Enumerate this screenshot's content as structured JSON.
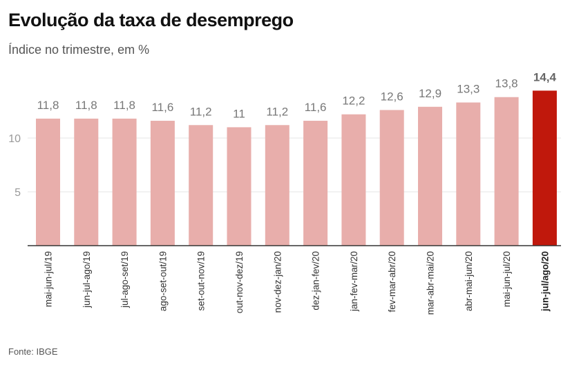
{
  "title": "Evolução da taxa de desemprego",
  "subtitle": "Índice no trimestre, em %",
  "source": "Fonte: IBGE",
  "chart_data": {
    "type": "bar",
    "categories": [
      "mai-jun-jul/19",
      "jun-jul-ago/19",
      "jul-ago-set/19",
      "ago-set-out/19",
      "set-out-nov/19",
      "out-nov-dez/19",
      "nov-dez-jan/20",
      "dez-jan-fev/20",
      "jan-fev-mar/20",
      "fev-mar-abr/20",
      "mar-abr-mai/20",
      "abr-mai-jun/20",
      "mai-jun-jul/20",
      "jun-jul/ago/20"
    ],
    "values": [
      11.8,
      11.8,
      11.8,
      11.6,
      11.2,
      11,
      11.2,
      11.6,
      12.2,
      12.6,
      12.9,
      13.3,
      13.8,
      14.4
    ],
    "value_labels": [
      "11,8",
      "11,8",
      "11,8",
      "11,6",
      "11,2",
      "11",
      "11,2",
      "11,6",
      "12,2",
      "12,6",
      "12,9",
      "13,3",
      "13,8",
      "14,4"
    ],
    "yticks": [
      5,
      10
    ],
    "ylim": [
      0,
      15
    ],
    "grid": true,
    "highlight_index": 13,
    "colors": {
      "bar": "#e8aeab",
      "highlight": "#c0180c",
      "grid": "#e6e6e6",
      "axis": "#333333"
    }
  }
}
